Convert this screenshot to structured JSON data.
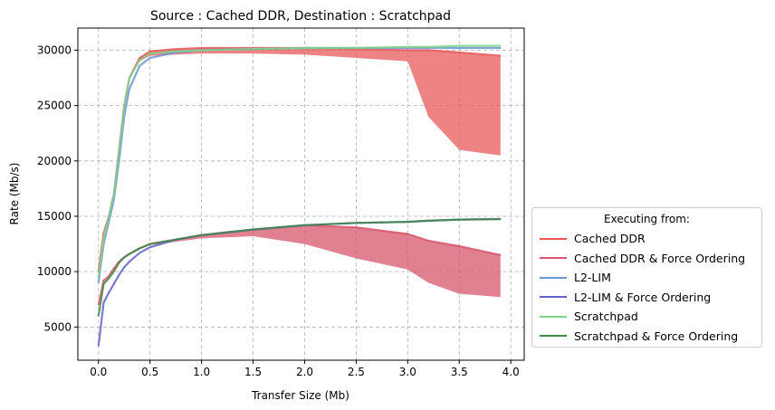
{
  "chart_data": {
    "type": "line",
    "title": "Source : Cached DDR, Destination : Scratchpad",
    "xlabel": "Transfer Size (Mb)",
    "ylabel": "Rate (Mb/s)",
    "xlim": [
      -0.2,
      4.13
    ],
    "ylim": [
      2000,
      32000
    ],
    "xticks": [
      0.0,
      0.5,
      1.0,
      1.5,
      2.0,
      2.5,
      3.0,
      3.5,
      4.0
    ],
    "xtick_labels": [
      "0.0",
      "0.5",
      "1.0",
      "1.5",
      "2.0",
      "2.5",
      "3.0",
      "3.5",
      "4.0"
    ],
    "yticks": [
      5000,
      10000,
      15000,
      20000,
      25000,
      30000
    ],
    "ytick_labels": [
      "5000",
      "10000",
      "15000",
      "20000",
      "25000",
      "30000"
    ],
    "grid": true,
    "grid_style": "dashed",
    "legend_title": "Executing from:",
    "legend_placement": "right, outside plot",
    "x": [
      0.0,
      0.05,
      0.1,
      0.15,
      0.2,
      0.25,
      0.3,
      0.4,
      0.5,
      0.75,
      1.0,
      1.5,
      2.0,
      2.5,
      3.0,
      3.2,
      3.5,
      3.9
    ],
    "series": [
      {
        "name": "Cached DDR",
        "color": "#e8595b",
        "values": [
          10000,
          13500,
          15000,
          17000,
          21000,
          25000,
          27500,
          29300,
          29900,
          30100,
          30200,
          30200,
          30200,
          30100,
          30000,
          30000,
          29800,
          29500
        ],
        "noise_low": [
          10000,
          13500,
          15000,
          17000,
          21000,
          25000,
          27500,
          29000,
          29500,
          29600,
          29700,
          29700,
          29600,
          29300,
          29000,
          24000,
          21000,
          20500
        ]
      },
      {
        "name": "Cached DDR & Force Ordering",
        "color": "#d7566c",
        "values": [
          7000,
          9200,
          9600,
          10300,
          10900,
          11300,
          11600,
          12100,
          12500,
          12900,
          13300,
          13800,
          14200,
          14000,
          13400,
          12800,
          12300,
          11500
        ],
        "noise_low": [
          7000,
          9200,
          9600,
          10300,
          10900,
          11300,
          11600,
          12100,
          12400,
          12700,
          13000,
          13200,
          12500,
          11200,
          10200,
          9000,
          8000,
          7700
        ]
      },
      {
        "name": "L2-LIM",
        "color": "#6a97d6",
        "values": [
          9000,
          12500,
          14500,
          16500,
          20000,
          24000,
          26500,
          28600,
          29300,
          29800,
          30000,
          30100,
          30200,
          30200,
          30200,
          30200,
          30200,
          30200
        ]
      },
      {
        "name": "L2-LIM & Force Ordering",
        "color": "#6161cc",
        "values": [
          3300,
          7200,
          8100,
          8900,
          9700,
          10400,
          10900,
          11700,
          12200,
          12900,
          13300,
          13800,
          14200,
          14400,
          14500,
          14600,
          14700,
          14750
        ]
      },
      {
        "name": "Scratchpad",
        "color": "#7fd48a",
        "values": [
          9500,
          13000,
          15000,
          17000,
          21000,
          25000,
          27500,
          29100,
          29700,
          29900,
          30000,
          30100,
          30200,
          30200,
          30300,
          30300,
          30400,
          30400
        ]
      },
      {
        "name": "Scratchpad & Force Ordering",
        "color": "#3f8a48",
        "values": [
          6000,
          8900,
          9400,
          10000,
          10800,
          11300,
          11600,
          12100,
          12500,
          12900,
          13300,
          13800,
          14200,
          14400,
          14500,
          14600,
          14700,
          14750
        ]
      }
    ]
  }
}
